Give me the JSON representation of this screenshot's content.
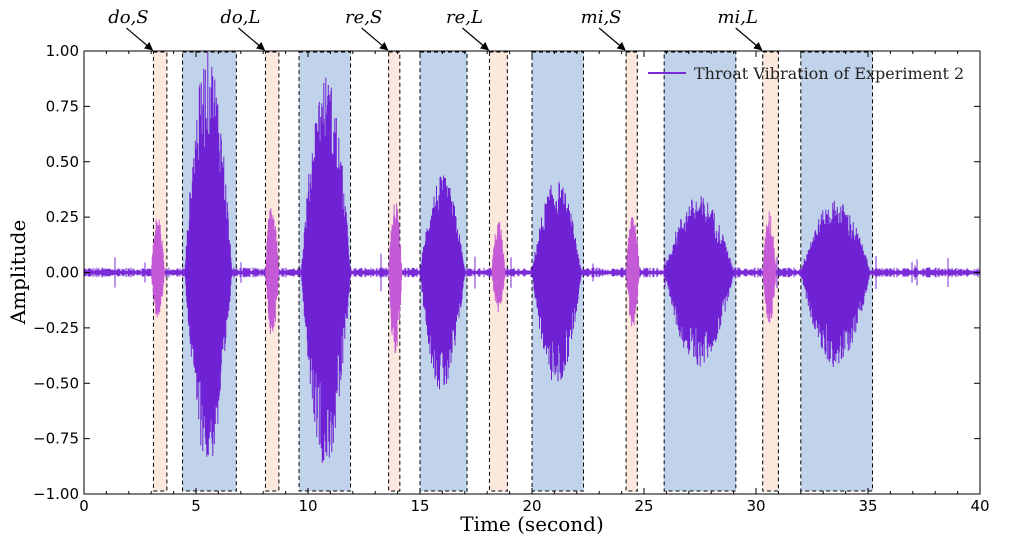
{
  "chart_data": {
    "type": "line",
    "title": "",
    "xlabel": "Time (second)",
    "ylabel": "Amplitude",
    "xlim": [
      0,
      40
    ],
    "ylim": [
      -1.0,
      1.0
    ],
    "xticks": [
      0,
      5,
      10,
      15,
      20,
      25,
      30,
      35,
      40
    ],
    "xtick_labels": [
      "0",
      "5",
      "10",
      "15",
      "20",
      "25",
      "30",
      "35",
      "40"
    ],
    "yticks": [
      -1.0,
      -0.75,
      -0.5,
      -0.25,
      0.0,
      0.25,
      0.5,
      0.75,
      1.0
    ],
    "ytick_labels": [
      "−1.00",
      "−0.75",
      "−0.50",
      "−0.25",
      "0.00",
      "0.25",
      "0.50",
      "0.75",
      "1.00"
    ],
    "grid": false,
    "legend": {
      "entries": [
        "Throat Vibration of Experiment 2"
      ],
      "placement": "top-right"
    },
    "series": [
      {
        "name": "Throat Vibration of Experiment 2",
        "color": "#7a2ad6",
        "baseline_noise": 0.008,
        "bursts": [
          {
            "start": 3.0,
            "end": 3.6,
            "pos_peak": 0.27,
            "neg_peak": -0.22,
            "color": "#c45ad6"
          },
          {
            "start": 4.5,
            "end": 6.6,
            "pos_peak": 1.0,
            "neg_peak": -0.88,
            "color": "#6f22d4"
          },
          {
            "start": 8.1,
            "end": 8.7,
            "pos_peak": 0.36,
            "neg_peak": -0.3,
            "color": "#c45ad6"
          },
          {
            "start": 9.7,
            "end": 11.9,
            "pos_peak": 0.9,
            "neg_peak": -0.88,
            "color": "#6f22d4"
          },
          {
            "start": 13.6,
            "end": 14.2,
            "pos_peak": 0.33,
            "neg_peak": -0.4,
            "color": "#c45ad6"
          },
          {
            "start": 15.0,
            "end": 17.0,
            "pos_peak": 0.44,
            "neg_peak": -0.55,
            "color": "#6f22d4"
          },
          {
            "start": 18.2,
            "end": 18.8,
            "pos_peak": 0.24,
            "neg_peak": -0.18,
            "color": "#c45ad6"
          },
          {
            "start": 20.0,
            "end": 22.2,
            "pos_peak": 0.42,
            "neg_peak": -0.52,
            "color": "#6f22d4"
          },
          {
            "start": 24.2,
            "end": 24.8,
            "pos_peak": 0.3,
            "neg_peak": -0.26,
            "color": "#c45ad6"
          },
          {
            "start": 25.9,
            "end": 29.0,
            "pos_peak": 0.35,
            "neg_peak": -0.43,
            "color": "#6f22d4"
          },
          {
            "start": 30.3,
            "end": 30.9,
            "pos_peak": 0.28,
            "neg_peak": -0.24,
            "color": "#c45ad6"
          },
          {
            "start": 32.0,
            "end": 35.1,
            "pos_peak": 0.33,
            "neg_peak": -0.43,
            "color": "#6f22d4"
          }
        ]
      }
    ],
    "regions": [
      {
        "kind": "short",
        "x0": 3.1,
        "x1": 3.7
      },
      {
        "kind": "long",
        "x0": 4.4,
        "x1": 6.8
      },
      {
        "kind": "short",
        "x0": 8.1,
        "x1": 8.7
      },
      {
        "kind": "long",
        "x0": 9.6,
        "x1": 11.9
      },
      {
        "kind": "short",
        "x0": 13.6,
        "x1": 14.1
      },
      {
        "kind": "long",
        "x0": 15.0,
        "x1": 17.1
      },
      {
        "kind": "short",
        "x0": 18.1,
        "x1": 18.9
      },
      {
        "kind": "long",
        "x0": 20.0,
        "x1": 22.3
      },
      {
        "kind": "short",
        "x0": 24.2,
        "x1": 24.7
      },
      {
        "kind": "long",
        "x0": 25.9,
        "x1": 29.1
      },
      {
        "kind": "short",
        "x0": 30.3,
        "x1": 31.0
      },
      {
        "kind": "long",
        "x0": 32.0,
        "x1": 35.2
      }
    ],
    "region_colors": {
      "short": "#fde8de",
      "long": "#c0d3ea"
    },
    "annotations": [
      {
        "text": "do,S",
        "target_x": 3.1
      },
      {
        "text": "do,L",
        "target_x": 8.1
      },
      {
        "text": "re,S",
        "target_x": 13.6
      },
      {
        "text": "re,L",
        "target_x": 18.1
      },
      {
        "text": "mi,S",
        "target_x": 24.2
      },
      {
        "text": "mi,L",
        "target_x": 30.3
      }
    ]
  }
}
